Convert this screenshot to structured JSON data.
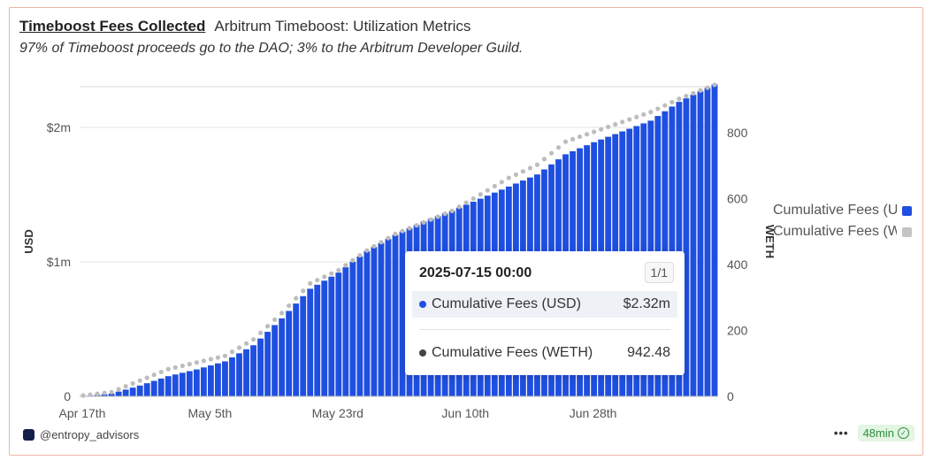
{
  "header": {
    "title": "Timeboost Fees Collected",
    "subtitle": "Arbitrum Timeboost: Utilization Metrics",
    "description": "97% of Timeboost proceeds go to the DAO; 3% to the Arbitrum Developer Guild."
  },
  "tooltip": {
    "date": "2025-07-15 00:00",
    "page": "1/1",
    "rows": [
      {
        "label": "Cumulative Fees (USD)",
        "value": "$2.32m"
      },
      {
        "label": "Cumulative Fees (WETH)",
        "value": "942.48"
      }
    ]
  },
  "legend": {
    "items": [
      {
        "label": "Cumulative Fees (USD)"
      },
      {
        "label": "Cumulative Fees (WETH)"
      }
    ]
  },
  "footer": {
    "handle": "@entropy_advisors",
    "more": "•••",
    "badge": "48min"
  },
  "colors": {
    "usd_bar": "#1f4fe0",
    "weth_dot": "#bdbdbd",
    "tooltip_dot_usd": "#1f4fe0",
    "tooltip_dot_weth": "#444444",
    "check": "#2e8b3a"
  },
  "chart_data": {
    "type": "bar",
    "x_start": "2025-04-17",
    "x_ticks": [
      "Apr 17th",
      "May 5th",
      "May 23rd",
      "Jun 10th",
      "Jun 28th"
    ],
    "ylabel_left": "USD",
    "ylabel_right": "WETH",
    "y_left_ticks": [
      "0",
      "$1m",
      "$2m"
    ],
    "y_left_lim": [
      0,
      2000000
    ],
    "y_right_ticks": [
      "0",
      "200",
      "400",
      "600",
      "800"
    ],
    "y_right_lim": [
      0,
      800
    ],
    "legend_position": "right",
    "series": [
      {
        "name": "Cumulative Fees (USD)",
        "kind": "bar",
        "axis": "left",
        "keypoints": [
          [
            "2025-04-17",
            0
          ],
          [
            "2025-04-21",
            20000
          ],
          [
            "2025-04-25",
            80000
          ],
          [
            "2025-04-29",
            150000
          ],
          [
            "2025-05-03",
            200000
          ],
          [
            "2025-05-07",
            260000
          ],
          [
            "2025-05-11",
            380000
          ],
          [
            "2025-05-15",
            580000
          ],
          [
            "2025-05-19",
            800000
          ],
          [
            "2025-05-23",
            920000
          ],
          [
            "2025-05-27",
            1080000
          ],
          [
            "2025-05-31",
            1200000
          ],
          [
            "2025-06-04",
            1300000
          ],
          [
            "2025-06-08",
            1380000
          ],
          [
            "2025-06-12",
            1470000
          ],
          [
            "2025-06-16",
            1560000
          ],
          [
            "2025-06-20",
            1650000
          ],
          [
            "2025-06-24",
            1800000
          ],
          [
            "2025-06-28",
            1890000
          ],
          [
            "2025-07-02",
            1970000
          ],
          [
            "2025-07-06",
            2050000
          ],
          [
            "2025-07-10",
            2190000
          ],
          [
            "2025-07-15",
            2320000
          ]
        ]
      },
      {
        "name": "Cumulative Fees (WETH)",
        "kind": "scatter",
        "axis": "right",
        "keypoints": [
          [
            "2025-04-17",
            0
          ],
          [
            "2025-04-21",
            10
          ],
          [
            "2025-04-25",
            45
          ],
          [
            "2025-04-29",
            80
          ],
          [
            "2025-05-03",
            100
          ],
          [
            "2025-05-07",
            120
          ],
          [
            "2025-05-11",
            170
          ],
          [
            "2025-05-15",
            250
          ],
          [
            "2025-05-19",
            340
          ],
          [
            "2025-05-23",
            380
          ],
          [
            "2025-05-27",
            440
          ],
          [
            "2025-05-31",
            490
          ],
          [
            "2025-06-04",
            525
          ],
          [
            "2025-06-08",
            560
          ],
          [
            "2025-06-12",
            610
          ],
          [
            "2025-06-16",
            660
          ],
          [
            "2025-06-20",
            700
          ],
          [
            "2025-06-24",
            770
          ],
          [
            "2025-06-28",
            800
          ],
          [
            "2025-07-02",
            830
          ],
          [
            "2025-07-06",
            860
          ],
          [
            "2025-07-10",
            900
          ],
          [
            "2025-07-15",
            942.48
          ]
        ]
      }
    ]
  }
}
